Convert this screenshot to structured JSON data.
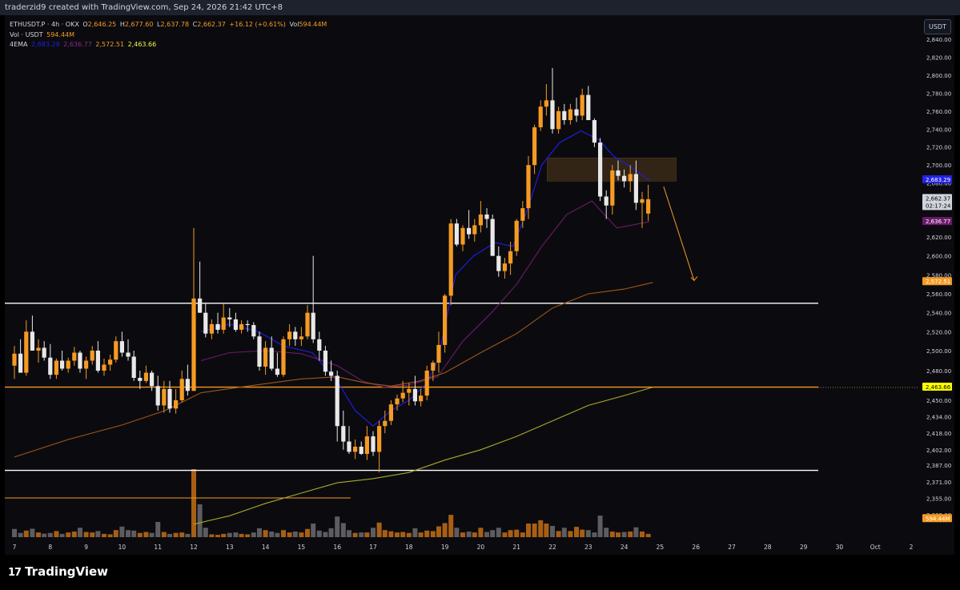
{
  "header": {
    "author_line": "traderzid9 created with TradingView.com, Sep 24, 2026 21:42 UTC+8"
  },
  "legend": {
    "symbol": "ETHUSDT.P · 4h · OKX",
    "o_label": "O",
    "o_value": "2,646.25",
    "h_label": "H",
    "h_value": "2,677.60",
    "l_label": "L",
    "l_value": "2,637.78",
    "c_label": "C",
    "c_value": "2,662.37",
    "change": "+16.12 (+0.61%)",
    "vol_label": "Vol",
    "vol_value": "594.44M",
    "vol_line_label": "Vol · USDT",
    "vol_line_value": "594.44M",
    "ema_label": "4EMA",
    "ema_values": [
      "2,683.29",
      "2,636.77",
      "2,572.51",
      "2,463.66"
    ]
  },
  "currency_button": "USDT",
  "brand": "TradingView",
  "colors": {
    "bull": "#f59a23",
    "bear": "#e8e8e8",
    "volume_bull": "#a85f14",
    "volume_bear": "#5d5d61",
    "ema1": "#1e1ef0",
    "ema2": "#6c1a6c",
    "ema3": "#a0561a",
    "ema4": "#a9a92c",
    "support_white": "#ffffff",
    "support_orange": "#f59a23"
  },
  "chart_data": {
    "type": "candlestick",
    "symbol": "ETHUSDT.P",
    "interval": "4h",
    "ylim": [
      2330,
      2850
    ],
    "y_ticks": [
      2840,
      2820,
      2800,
      2780,
      2760,
      2740,
      2720,
      2700,
      2680,
      2660,
      2640,
      2620,
      2600,
      2580,
      2560,
      2540,
      2520,
      2500,
      2480,
      2463,
      2450,
      2434,
      2418,
      2402,
      2387,
      2371,
      2355,
      2339
    ],
    "y_tick_labels": [
      "2,840.00",
      "2,820.00",
      "2,800.00",
      "2,780.00",
      "2,760.00",
      "2,740.00",
      "2,720.00",
      "2,700.00",
      "2,680.00",
      "2,660.00",
      "2,640.00",
      "2,620.00",
      "2,600.00",
      "2,580.00",
      "2,560.00",
      "2,540.00",
      "2,520.00",
      "2,500.00",
      "2,480.00",
      "2,463.66",
      "2,450.00",
      "2,434.00",
      "2,418.00",
      "2,402.00",
      "2,387.00",
      "2,371.00",
      "2,355.00",
      "2,339.00"
    ],
    "x_tick_labels": [
      "7",
      "8",
      "9",
      "10",
      "11",
      "12",
      "13",
      "14",
      "15",
      "16",
      "17",
      "18",
      "19",
      "20",
      "21",
      "22",
      "23",
      "24",
      "25",
      "26",
      "27",
      "28",
      "29",
      "30",
      "Oct",
      "2"
    ],
    "price_badges": [
      {
        "label": "2,683.29",
        "value": 2683.29,
        "color": "#2323e6"
      },
      {
        "label": "2,662.37",
        "sublabel": "02:17:24",
        "value": 2662.37,
        "color": "#d1d4dc"
      },
      {
        "label": "2,636.77",
        "value": 2636.77,
        "color": "#6c1a6c"
      },
      {
        "label": "2,572.51",
        "value": 2572.51,
        "color": "#f59a23"
      },
      {
        "label": "2,463.66",
        "value": 2463.66,
        "color": "#ffff00"
      },
      {
        "label": "594.44M",
        "value": 2335,
        "color": "#f59a23"
      }
    ],
    "horizontal_lines": [
      {
        "value": 2550,
        "color": "#ffffff"
      },
      {
        "value": 2464,
        "color": "#f59a23"
      },
      {
        "value": 2382,
        "color": "#ffffff"
      }
    ],
    "zone": {
      "x_start": 21.85,
      "x_end": 25.45,
      "y_low": 2682,
      "y_high": 2708
    },
    "arrow": {
      "x_start": 25.1,
      "y_start": 2676,
      "x_end": 25.95,
      "y_end": 2574
    },
    "candles": [
      [
        7.0,
        2485,
        2505,
        2472,
        2497
      ],
      [
        7.17,
        2497,
        2512,
        2480,
        2478
      ],
      [
        7.33,
        2478,
        2532,
        2475,
        2520
      ],
      [
        7.5,
        2520,
        2537,
        2500,
        2500
      ],
      [
        7.67,
        2500,
        2512,
        2488,
        2503
      ],
      [
        7.83,
        2503,
        2510,
        2490,
        2493
      ],
      [
        8.0,
        2493,
        2507,
        2472,
        2476
      ],
      [
        8.17,
        2476,
        2492,
        2472,
        2490
      ],
      [
        8.33,
        2490,
        2500,
        2480,
        2482
      ],
      [
        8.5,
        2482,
        2493,
        2478,
        2490
      ],
      [
        8.67,
        2490,
        2504,
        2485,
        2498
      ],
      [
        8.83,
        2498,
        2500,
        2478,
        2482
      ],
      [
        9.0,
        2482,
        2494,
        2472,
        2490
      ],
      [
        9.17,
        2490,
        2505,
        2486,
        2500
      ],
      [
        9.33,
        2500,
        2510,
        2478,
        2480
      ],
      [
        9.5,
        2480,
        2492,
        2475,
        2486
      ],
      [
        9.67,
        2486,
        2496,
        2480,
        2491
      ],
      [
        9.83,
        2491,
        2515,
        2488,
        2510
      ],
      [
        10.0,
        2510,
        2520,
        2494,
        2498
      ],
      [
        10.17,
        2498,
        2512,
        2490,
        2494
      ],
      [
        10.33,
        2494,
        2500,
        2470,
        2473
      ],
      [
        10.5,
        2473,
        2480,
        2462,
        2470
      ],
      [
        10.67,
        2470,
        2485,
        2468,
        2478
      ],
      [
        10.83,
        2478,
        2480,
        2460,
        2465
      ],
      [
        11.0,
        2465,
        2475,
        2440,
        2445
      ],
      [
        11.17,
        2445,
        2470,
        2438,
        2462
      ],
      [
        11.33,
        2462,
        2470,
        2438,
        2442
      ],
      [
        11.5,
        2442,
        2462,
        2437,
        2450
      ],
      [
        11.67,
        2450,
        2480,
        2448,
        2472
      ],
      [
        11.83,
        2472,
        2486,
        2455,
        2460
      ],
      [
        12.0,
        2460,
        2630,
        2460,
        2555
      ],
      [
        12.17,
        2555,
        2594,
        2540,
        2540
      ],
      [
        12.33,
        2540,
        2550,
        2514,
        2518
      ],
      [
        12.5,
        2518,
        2533,
        2512,
        2528
      ],
      [
        12.67,
        2528,
        2540,
        2518,
        2522
      ],
      [
        12.83,
        2522,
        2550,
        2518,
        2535
      ],
      [
        13.0,
        2535,
        2545,
        2525,
        2533
      ],
      [
        13.17,
        2533,
        2540,
        2520,
        2522
      ],
      [
        13.33,
        2522,
        2532,
        2518,
        2528
      ],
      [
        13.5,
        2528,
        2532,
        2520,
        2527
      ],
      [
        13.67,
        2527,
        2530,
        2512,
        2515
      ],
      [
        13.83,
        2515,
        2520,
        2480,
        2484
      ],
      [
        14.0,
        2484,
        2510,
        2476,
        2503
      ],
      [
        14.17,
        2503,
        2515,
        2480,
        2482
      ],
      [
        14.33,
        2482,
        2498,
        2474,
        2476
      ],
      [
        14.5,
        2476,
        2515,
        2474,
        2512
      ],
      [
        14.67,
        2512,
        2528,
        2505,
        2520
      ],
      [
        14.83,
        2520,
        2525,
        2505,
        2512
      ],
      [
        15.0,
        2512,
        2525,
        2505,
        2515
      ],
      [
        15.17,
        2515,
        2548,
        2512,
        2540
      ],
      [
        15.33,
        2540,
        2600,
        2508,
        2512
      ],
      [
        15.5,
        2512,
        2520,
        2490,
        2500
      ],
      [
        15.67,
        2500,
        2505,
        2475,
        2479
      ],
      [
        15.83,
        2479,
        2490,
        2470,
        2475
      ],
      [
        16.0,
        2475,
        2480,
        2410,
        2425
      ],
      [
        16.17,
        2425,
        2440,
        2402,
        2410
      ],
      [
        16.33,
        2410,
        2425,
        2398,
        2400
      ],
      [
        16.5,
        2400,
        2412,
        2393,
        2405
      ],
      [
        16.67,
        2405,
        2410,
        2397,
        2398
      ],
      [
        16.83,
        2398,
        2425,
        2392,
        2415
      ],
      [
        17.0,
        2415,
        2420,
        2396,
        2400
      ],
      [
        17.17,
        2400,
        2430,
        2380,
        2425
      ],
      [
        17.33,
        2425,
        2440,
        2418,
        2430
      ],
      [
        17.5,
        2430,
        2450,
        2426,
        2446
      ],
      [
        17.67,
        2446,
        2456,
        2440,
        2452
      ],
      [
        17.83,
        2452,
        2470,
        2448,
        2458
      ],
      [
        18.0,
        2458,
        2468,
        2445,
        2462
      ],
      [
        18.17,
        2462,
        2475,
        2445,
        2449
      ],
      [
        18.33,
        2449,
        2462,
        2444,
        2455
      ],
      [
        18.5,
        2455,
        2485,
        2450,
        2480
      ],
      [
        18.67,
        2480,
        2490,
        2470,
        2488
      ],
      [
        18.83,
        2488,
        2520,
        2478,
        2506
      ],
      [
        19.0,
        2506,
        2560,
        2498,
        2558
      ],
      [
        19.17,
        2558,
        2640,
        2548,
        2635
      ],
      [
        19.33,
        2635,
        2640,
        2610,
        2612
      ],
      [
        19.5,
        2612,
        2633,
        2605,
        2630
      ],
      [
        19.67,
        2630,
        2650,
        2618,
        2623
      ],
      [
        19.83,
        2623,
        2640,
        2615,
        2633
      ],
      [
        20.0,
        2633,
        2660,
        2625,
        2645
      ],
      [
        20.17,
        2645,
        2652,
        2630,
        2640
      ],
      [
        20.33,
        2640,
        2645,
        2600,
        2600
      ],
      [
        20.5,
        2600,
        2610,
        2578,
        2584
      ],
      [
        20.67,
        2584,
        2598,
        2576,
        2592
      ],
      [
        20.83,
        2592,
        2615,
        2580,
        2605
      ],
      [
        21.0,
        2605,
        2640,
        2600,
        2638
      ],
      [
        21.17,
        2638,
        2660,
        2630,
        2652
      ],
      [
        21.33,
        2652,
        2710,
        2640,
        2700
      ],
      [
        21.5,
        2700,
        2745,
        2690,
        2742
      ],
      [
        21.67,
        2742,
        2772,
        2738,
        2765
      ],
      [
        21.83,
        2765,
        2790,
        2755,
        2772
      ],
      [
        22.0,
        2772,
        2808,
        2735,
        2740
      ],
      [
        22.17,
        2740,
        2765,
        2735,
        2760
      ],
      [
        22.33,
        2760,
        2768,
        2745,
        2750
      ],
      [
        22.5,
        2750,
        2768,
        2745,
        2762
      ],
      [
        22.67,
        2762,
        2775,
        2748,
        2755
      ],
      [
        22.83,
        2755,
        2785,
        2750,
        2778
      ],
      [
        23.0,
        2778,
        2788,
        2752,
        2750
      ],
      [
        23.17,
        2750,
        2752,
        2720,
        2725
      ],
      [
        23.33,
        2725,
        2730,
        2660,
        2665
      ],
      [
        23.5,
        2665,
        2672,
        2640,
        2655
      ],
      [
        23.67,
        2655,
        2700,
        2645,
        2694
      ],
      [
        23.83,
        2694,
        2705,
        2683,
        2688
      ],
      [
        24.0,
        2688,
        2695,
        2675,
        2682
      ],
      [
        24.17,
        2682,
        2700,
        2670,
        2690
      ],
      [
        24.33,
        2690,
        2705,
        2650,
        2658
      ],
      [
        24.5,
        2658,
        2670,
        2630,
        2662
      ],
      [
        24.67,
        2646,
        2678,
        2638,
        2662
      ]
    ],
    "volumes": [
      [
        7.0,
        35,
        0
      ],
      [
        7.17,
        18,
        0
      ],
      [
        7.33,
        28,
        1
      ],
      [
        7.5,
        36,
        0
      ],
      [
        7.67,
        20,
        1
      ],
      [
        7.83,
        15,
        0
      ],
      [
        8.0,
        18,
        0
      ],
      [
        8.17,
        26,
        1
      ],
      [
        8.33,
        14,
        0
      ],
      [
        8.5,
        20,
        1
      ],
      [
        8.67,
        24,
        1
      ],
      [
        8.83,
        40,
        0
      ],
      [
        9.0,
        22,
        1
      ],
      [
        9.17,
        20,
        1
      ],
      [
        9.33,
        26,
        0
      ],
      [
        9.5,
        14,
        1
      ],
      [
        9.67,
        12,
        1
      ],
      [
        9.83,
        30,
        1
      ],
      [
        10.0,
        45,
        0
      ],
      [
        10.17,
        30,
        0
      ],
      [
        10.33,
        28,
        0
      ],
      [
        10.5,
        18,
        1
      ],
      [
        10.67,
        22,
        1
      ],
      [
        10.83,
        18,
        0
      ],
      [
        11.0,
        65,
        0
      ],
      [
        11.17,
        22,
        1
      ],
      [
        11.33,
        14,
        0
      ],
      [
        11.5,
        18,
        1
      ],
      [
        11.67,
        20,
        1
      ],
      [
        11.83,
        14,
        0
      ],
      [
        12.0,
        290,
        1
      ],
      [
        12.17,
        140,
        0
      ],
      [
        12.33,
        40,
        0
      ],
      [
        12.5,
        12,
        1
      ],
      [
        12.67,
        10,
        1
      ],
      [
        12.83,
        14,
        1
      ],
      [
        13.0,
        18,
        0
      ],
      [
        13.17,
        20,
        0
      ],
      [
        13.33,
        14,
        1
      ],
      [
        13.5,
        12,
        1
      ],
      [
        13.67,
        20,
        0
      ],
      [
        13.83,
        38,
        0
      ],
      [
        14.0,
        30,
        1
      ],
      [
        14.17,
        24,
        0
      ],
      [
        14.33,
        18,
        0
      ],
      [
        14.5,
        30,
        1
      ],
      [
        14.67,
        20,
        1
      ],
      [
        14.83,
        24,
        0
      ],
      [
        15.0,
        20,
        1
      ],
      [
        15.17,
        35,
        1
      ],
      [
        15.33,
        58,
        0
      ],
      [
        15.5,
        28,
        0
      ],
      [
        15.67,
        22,
        0
      ],
      [
        15.83,
        38,
        0
      ],
      [
        16.0,
        88,
        0
      ],
      [
        16.17,
        60,
        0
      ],
      [
        16.33,
        30,
        0
      ],
      [
        16.5,
        18,
        1
      ],
      [
        16.67,
        20,
        0
      ],
      [
        16.83,
        20,
        1
      ],
      [
        17.0,
        40,
        0
      ],
      [
        17.17,
        62,
        1
      ],
      [
        17.33,
        30,
        1
      ],
      [
        17.5,
        25,
        1
      ],
      [
        17.67,
        20,
        1
      ],
      [
        17.83,
        22,
        1
      ],
      [
        18.0,
        18,
        1
      ],
      [
        18.17,
        38,
        0
      ],
      [
        18.33,
        20,
        1
      ],
      [
        18.5,
        28,
        1
      ],
      [
        18.67,
        26,
        1
      ],
      [
        18.83,
        46,
        1
      ],
      [
        19.0,
        60,
        1
      ],
      [
        19.17,
        95,
        1
      ],
      [
        19.33,
        40,
        0
      ],
      [
        19.5,
        20,
        1
      ],
      [
        19.67,
        24,
        0
      ],
      [
        19.83,
        20,
        1
      ],
      [
        20.0,
        40,
        1
      ],
      [
        20.17,
        22,
        0
      ],
      [
        20.33,
        30,
        0
      ],
      [
        20.5,
        40,
        0
      ],
      [
        20.67,
        20,
        1
      ],
      [
        20.83,
        30,
        1
      ],
      [
        21.0,
        32,
        1
      ],
      [
        21.17,
        20,
        1
      ],
      [
        21.33,
        58,
        1
      ],
      [
        21.5,
        58,
        1
      ],
      [
        21.67,
        72,
        1
      ],
      [
        21.83,
        58,
        1
      ],
      [
        22.0,
        48,
        0
      ],
      [
        22.17,
        26,
        1
      ],
      [
        22.33,
        40,
        0
      ],
      [
        22.5,
        26,
        1
      ],
      [
        22.67,
        44,
        1
      ],
      [
        22.83,
        32,
        1
      ],
      [
        23.0,
        30,
        0
      ],
      [
        23.17,
        20,
        0
      ],
      [
        23.33,
        92,
        0
      ],
      [
        23.5,
        40,
        0
      ],
      [
        23.67,
        24,
        1
      ],
      [
        23.83,
        20,
        1
      ],
      [
        24.0,
        22,
        0
      ],
      [
        24.17,
        24,
        1
      ],
      [
        24.33,
        42,
        0
      ],
      [
        24.5,
        24,
        1
      ],
      [
        24.67,
        14,
        1
      ]
    ],
    "volume_axis_max": 290
  }
}
